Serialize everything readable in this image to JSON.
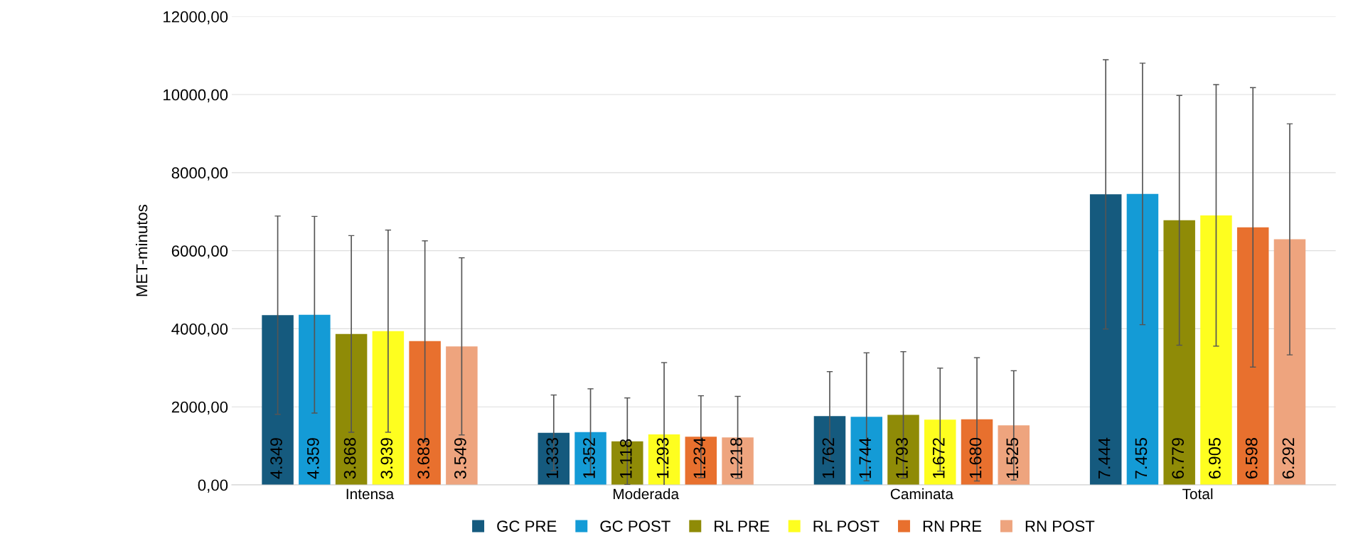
{
  "chart_data": {
    "type": "bar",
    "ylabel": "MET-minutos",
    "categories": [
      "Intensa",
      "Moderada",
      "Caminata",
      "Total"
    ],
    "series": [
      {
        "name": "GC PRE",
        "color": "#155a7e",
        "values": [
          4349,
          1333,
          1762,
          7444
        ],
        "errors": [
          2540,
          970,
          1140,
          3450
        ],
        "value_labels": [
          "4.349",
          "1.333",
          "1.762",
          "7.444"
        ]
      },
      {
        "name": "GC POST",
        "color": "#149bd6",
        "values": [
          4359,
          1352,
          1744,
          7455
        ],
        "errors": [
          2520,
          1110,
          1640,
          3350
        ],
        "value_labels": [
          "4.359",
          "1.352",
          "1.744",
          "7.455"
        ]
      },
      {
        "name": "RL PRE",
        "color": "#8f8b07",
        "values": [
          3868,
          1118,
          1793,
          6779
        ],
        "errors": [
          2520,
          1110,
          1620,
          3200
        ],
        "value_labels": [
          "3.868",
          "1.118",
          "1.793",
          "6.779"
        ]
      },
      {
        "name": "RL POST",
        "color": "#fefe1f",
        "values": [
          3939,
          1293,
          1672,
          6905
        ],
        "errors": [
          2590,
          1840,
          1320,
          3350
        ],
        "value_labels": [
          "3.939",
          "1.293",
          "1.672",
          "6.905"
        ]
      },
      {
        "name": "RN PRE",
        "color": "#e8702e",
        "values": [
          3683,
          1234,
          1680,
          6598
        ],
        "errors": [
          2570,
          1050,
          1580,
          3580
        ],
        "value_labels": [
          "3.683",
          "1.234",
          "1.680",
          "6.598"
        ]
      },
      {
        "name": "RN POST",
        "color": "#eea47e",
        "values": [
          3549,
          1218,
          1525,
          6292
        ],
        "errors": [
          2270,
          1050,
          1400,
          2960
        ],
        "value_labels": [
          "3.549",
          "1.218",
          "1.525",
          "6.292"
        ]
      }
    ],
    "ylim": [
      0,
      12000
    ],
    "yticks": [
      {
        "value": 0,
        "label": "0,00"
      },
      {
        "value": 2000,
        "label": "2000,00"
      },
      {
        "value": 4000,
        "label": "4000,00"
      },
      {
        "value": 6000,
        "label": "6000,00"
      },
      {
        "value": 8000,
        "label": "8000,00"
      },
      {
        "value": 10000,
        "label": "10000,00"
      },
      {
        "value": 12000,
        "label": "12000,00"
      }
    ],
    "grid": "y",
    "legend": "bottom"
  }
}
